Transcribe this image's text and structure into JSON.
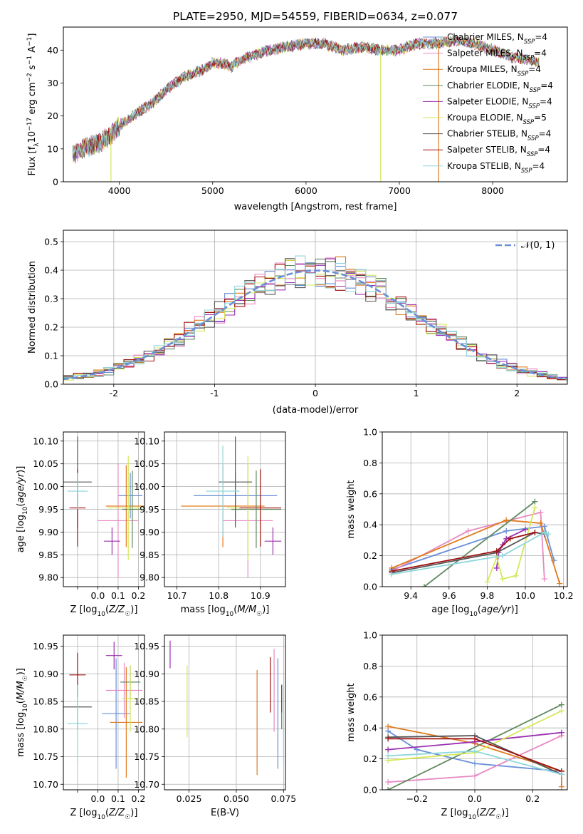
{
  "colors": {
    "chabrier_miles": "#6a8fd8",
    "salpeter_miles": "#e78ac3",
    "kroupa_miles": "#e07b1f",
    "chabrier_elodie": "#5f8a5f",
    "salpeter_elodie": "#9b30b0",
    "kroupa_elodie": "#d4e85a",
    "chabrier_stelib": "#555555",
    "salpeter_stelib": "#a01010",
    "kroupa_stelib": "#8fd6dc",
    "normal_curve": "#6a8fd8"
  },
  "chart_data": [
    {
      "id": "spectrum",
      "type": "line",
      "title": "PLATE=2950, MJD=54559, FIBERID=0634, z=0.077",
      "xlabel": "wavelength [Angstrom, rest frame]",
      "ylabel": "Flux [fλ10−17 erg cm−2 s−1 A−1]",
      "xlim": [
        3400,
        8800
      ],
      "ylim": [
        0,
        47
      ],
      "xticks": [
        4000,
        5000,
        6000,
        7000,
        8000
      ],
      "yticks": [
        0,
        10,
        20,
        30,
        40
      ],
      "grid": false,
      "legend_position": "upper-right",
      "legend": [
        {
          "text": "Chabrier MILES, N",
          "sub": "SSP",
          "tail": "=4",
          "color": "chabrier_miles"
        },
        {
          "text": "Salpeter MILES, N",
          "sub": "SSP",
          "tail": "=4",
          "color": "salpeter_miles"
        },
        {
          "text": "Kroupa MILES, N",
          "sub": "SSP",
          "tail": "=4",
          "color": "kroupa_miles"
        },
        {
          "text": "Chabrier ELODIE, N",
          "sub": "SSP",
          "tail": "=4",
          "color": "chabrier_elodie"
        },
        {
          "text": "Salpeter ELODIE, N",
          "sub": "SSP",
          "tail": "=4",
          "color": "salpeter_elodie"
        },
        {
          "text": "Kroupa ELODIE, N",
          "sub": "SSP",
          "tail": "=5",
          "color": "kroupa_elodie"
        },
        {
          "text": "Chabrier STELIB, N",
          "sub": "SSP",
          "tail": "=4",
          "color": "chabrier_stelib"
        },
        {
          "text": "Salpeter STELIB, N",
          "sub": "SSP",
          "tail": "=4",
          "color": "salpeter_stelib"
        },
        {
          "text": "Kroupa STELIB, N",
          "sub": "SSP",
          "tail": "=4",
          "color": "kroupa_stelib"
        }
      ],
      "continuum": [
        [
          3500,
          8
        ],
        [
          3600,
          10
        ],
        [
          3700,
          11
        ],
        [
          3800,
          12
        ],
        [
          3900,
          14
        ],
        [
          4000,
          17
        ],
        [
          4100,
          19
        ],
        [
          4200,
          21
        ],
        [
          4300,
          23
        ],
        [
          4400,
          25
        ],
        [
          4500,
          28
        ],
        [
          4600,
          30
        ],
        [
          4700,
          32
        ],
        [
          4800,
          33
        ],
        [
          4900,
          34
        ],
        [
          5000,
          36
        ],
        [
          5100,
          36
        ],
        [
          5200,
          35
        ],
        [
          5300,
          37
        ],
        [
          5400,
          38
        ],
        [
          5500,
          39
        ],
        [
          5600,
          40
        ],
        [
          5800,
          41
        ],
        [
          6000,
          42
        ],
        [
          6200,
          42
        ],
        [
          6400,
          40
        ],
        [
          6600,
          41
        ],
        [
          6800,
          40
        ],
        [
          7000,
          40
        ],
        [
          7200,
          42
        ],
        [
          7400,
          42
        ],
        [
          7600,
          43
        ],
        [
          7800,
          42
        ],
        [
          8000,
          40
        ],
        [
          8200,
          38
        ],
        [
          8400,
          37
        ],
        [
          8500,
          36
        ]
      ],
      "dropouts": [
        [
          3910,
          "kroupa_elodie"
        ],
        [
          6800,
          "kroupa_elodie"
        ],
        [
          7420,
          "kroupa_miles"
        ]
      ]
    },
    {
      "id": "residual-histogram",
      "type": "step",
      "xlabel": "(data-model)/error",
      "ylabel": "Normed distribution",
      "xlim": [
        -2.5,
        2.5
      ],
      "ylim": [
        0,
        0.54
      ],
      "xticks": [
        -2,
        -1,
        0,
        1,
        2
      ],
      "yticks": [
        0.0,
        0.1,
        0.2,
        0.3,
        0.4,
        0.5
      ],
      "grid": true,
      "legend_position": "upper-right",
      "legend_label": "𝒩(0, 1)",
      "bin_width": 0.1
    },
    {
      "id": "age-vs-Z",
      "type": "errorbar",
      "xlabel": "Z [log10(Z/Z☉)]",
      "ylabel": "age  [log10(age/yr)]",
      "xlim": [
        -0.17,
        0.23
      ],
      "ylim": [
        9.78,
        10.12
      ],
      "xticks": [
        -0.1,
        0.0,
        0.1,
        0.2
      ],
      "xticklabels": [
        "",
        "0.0",
        "0.1",
        "0.2"
      ],
      "yticks": [
        9.8,
        9.85,
        9.9,
        9.95,
        10.0,
        10.05,
        10.1
      ],
      "grid": true,
      "points": [
        {
          "color": "chabrier_miles",
          "x": 0.16,
          "xerr": 0.06,
          "y": 9.98,
          "yerr": 0.05
        },
        {
          "color": "salpeter_miles",
          "x": 0.1,
          "xerr": 0.1,
          "y": 9.925,
          "yerr": 0.125
        },
        {
          "color": "kroupa_miles",
          "x": 0.14,
          "xerr": 0.1,
          "y": 9.957,
          "yerr": 0.09
        },
        {
          "color": "chabrier_elodie",
          "x": 0.17,
          "xerr": 0.05,
          "y": 9.95,
          "yerr": 0.085
        },
        {
          "color": "salpeter_elodie",
          "x": 0.07,
          "xerr": 0.04,
          "y": 9.88,
          "yerr": 0.03
        },
        {
          "color": "kroupa_elodie",
          "x": 0.15,
          "xerr": 0.1,
          "y": 9.953,
          "yerr": 0.115
        },
        {
          "color": "chabrier_stelib",
          "x": -0.1,
          "xerr": 0.07,
          "y": 10.01,
          "yerr": 0.1
        },
        {
          "color": "salpeter_stelib",
          "x": -0.1,
          "xerr": 0.04,
          "y": 9.953,
          "yerr": 0.085
        },
        {
          "color": "kroupa_stelib",
          "x": -0.1,
          "xerr": 0.05,
          "y": 9.99,
          "yerr": 0.04
        }
      ]
    },
    {
      "id": "age-vs-mass",
      "type": "errorbar",
      "xlabel": "mass [log10(M/M☉)]",
      "ylabel": "",
      "xlim": [
        10.67,
        10.96
      ],
      "ylim": [
        9.78,
        10.12
      ],
      "xticks": [
        10.7,
        10.8,
        10.9
      ],
      "yticks": [
        9.8,
        9.85,
        9.9,
        9.95,
        10.0,
        10.05,
        10.1
      ],
      "grid": true,
      "points": [
        {
          "color": "chabrier_miles",
          "x": 10.84,
          "xerr": 0.1,
          "y": 9.98,
          "yerr": 0.05
        },
        {
          "color": "salpeter_miles",
          "x": 10.87,
          "xerr": 0.06,
          "y": 9.925,
          "yerr": 0.125
        },
        {
          "color": "kroupa_miles",
          "x": 10.81,
          "xerr": 0.1,
          "y": 9.957,
          "yerr": 0.09
        },
        {
          "color": "chabrier_elodie",
          "x": 10.89,
          "xerr": 0.06,
          "y": 9.95,
          "yerr": 0.085
        },
        {
          "color": "salpeter_elodie",
          "x": 10.93,
          "xerr": 0.02,
          "y": 9.88,
          "yerr": 0.03
        },
        {
          "color": "kroupa_elodie",
          "x": 10.87,
          "xerr": 0.05,
          "y": 9.953,
          "yerr": 0.115
        },
        {
          "color": "chabrier_stelib",
          "x": 10.84,
          "xerr": 0.04,
          "y": 10.01,
          "yerr": 0.1
        },
        {
          "color": "salpeter_stelib",
          "x": 10.9,
          "xerr": 0.05,
          "y": 9.953,
          "yerr": 0.085
        },
        {
          "color": "kroupa_stelib",
          "x": 10.81,
          "xerr": 0.04,
          "y": 9.99,
          "yerr": 0.1
        }
      ]
    },
    {
      "id": "mass-weight-vs-age",
      "type": "line",
      "xlabel": "age  [log10(age/yr)]",
      "ylabel": "mass weight",
      "xlim": [
        9.25,
        10.22
      ],
      "ylim": [
        0,
        1
      ],
      "xticks": [
        9.4,
        9.6,
        9.8,
        10.0,
        10.2
      ],
      "yticks": [
        0.0,
        0.2,
        0.4,
        0.6,
        0.8,
        1.0
      ],
      "grid": true,
      "series": [
        {
          "color": "chabrier_miles",
          "x": [
            9.3,
            9.9,
            10.1,
            10.15
          ],
          "y": [
            0.11,
            0.36,
            0.39,
            0.17
          ]
        },
        {
          "color": "salpeter_miles",
          "x": [
            9.3,
            9.7,
            10.08,
            10.1
          ],
          "y": [
            0.1,
            0.36,
            0.48,
            0.05
          ]
        },
        {
          "color": "kroupa_miles",
          "x": [
            9.3,
            9.9,
            10.08,
            10.18
          ],
          "y": [
            0.12,
            0.43,
            0.41,
            0.02
          ]
        },
        {
          "color": "chabrier_elodie",
          "x": [
            9.47,
            10.05
          ],
          "y": [
            0.0,
            0.55
          ]
        },
        {
          "color": "salpeter_elodie",
          "x": [
            9.85,
            9.86,
            9.88,
            9.9,
            10.0
          ],
          "y": [
            0.12,
            0.22,
            0.27,
            0.31,
            0.37
          ]
        },
        {
          "color": "kroupa_elodie",
          "x": [
            9.8,
            9.85,
            9.88,
            9.95,
            10.05
          ],
          "y": [
            0.03,
            0.19,
            0.05,
            0.07,
            0.51
          ]
        },
        {
          "color": "chabrier_stelib",
          "x": [
            9.3,
            9.85,
            10.05,
            10.1
          ],
          "y": [
            0.09,
            0.22,
            0.35,
            0.34
          ]
        },
        {
          "color": "salpeter_stelib",
          "x": [
            9.3,
            9.85,
            9.92,
            10.05
          ],
          "y": [
            0.1,
            0.23,
            0.31,
            0.35
          ]
        },
        {
          "color": "kroupa_stelib",
          "x": [
            9.3,
            9.88,
            10.1,
            10.12
          ],
          "y": [
            0.08,
            0.2,
            0.35,
            0.34
          ]
        }
      ]
    },
    {
      "id": "mass-vs-Z",
      "type": "errorbar",
      "xlabel": "Z [log10(Z/Z☉)]",
      "ylabel": "mass [log10(M/M☉)]",
      "xlim": [
        -0.17,
        0.23
      ],
      "ylim": [
        10.69,
        10.97
      ],
      "xticks": [
        -0.1,
        0.0,
        0.1,
        0.2
      ],
      "xticklabels": [
        "",
        "0.0",
        "0.1",
        "0.2"
      ],
      "yticks": [
        10.7,
        10.75,
        10.8,
        10.85,
        10.9,
        10.95
      ],
      "grid": true,
      "points": [
        {
          "color": "chabrier_miles",
          "x": 0.09,
          "xerr": 0.07,
          "y": 10.828,
          "yerr": 0.1
        },
        {
          "color": "salpeter_miles",
          "x": 0.13,
          "xerr": 0.09,
          "y": 10.87,
          "yerr": 0.05
        },
        {
          "color": "kroupa_miles",
          "x": 0.14,
          "xerr": 0.08,
          "y": 10.812,
          "yerr": 0.1
        },
        {
          "color": "chabrier_elodie",
          "x": 0.16,
          "xerr": 0.05,
          "y": 10.885,
          "yerr": 0.03
        },
        {
          "color": "salpeter_elodie",
          "x": 0.08,
          "xerr": 0.04,
          "y": 10.933,
          "yerr": 0.025
        },
        {
          "color": "kroupa_elodie",
          "x": 0.16,
          "xerr": 0.04,
          "y": 10.855,
          "yerr": 0.06
        },
        {
          "color": "chabrier_stelib",
          "x": -0.1,
          "xerr": 0.07,
          "y": 10.84,
          "yerr": 0.04
        },
        {
          "color": "salpeter_stelib",
          "x": -0.1,
          "xerr": 0.04,
          "y": 10.898,
          "yerr": 0.04
        },
        {
          "color": "kroupa_stelib",
          "x": -0.1,
          "xerr": 0.05,
          "y": 10.81,
          "yerr": 0.07
        }
      ]
    },
    {
      "id": "mass-vs-EBV",
      "type": "errorbar",
      "xlabel": "E(B-V)",
      "ylabel": "",
      "xlim": [
        0.012,
        0.076
      ],
      "ylim": [
        10.69,
        10.97
      ],
      "xticks": [
        0.025,
        0.05,
        0.075
      ],
      "xticklabels": [
        "0.025",
        "0.050",
        "0.075"
      ],
      "yticks": [
        10.7,
        10.75,
        10.8,
        10.85,
        10.9,
        10.95
      ],
      "grid": true,
      "points": [
        {
          "color": "chabrier_miles",
          "x": 0.072,
          "xerr": 0.0,
          "y": 10.828,
          "yerr": 0.1
        },
        {
          "color": "salpeter_miles",
          "x": 0.07,
          "xerr": 0.0,
          "y": 10.87,
          "yerr": 0.075
        },
        {
          "color": "kroupa_miles",
          "x": 0.061,
          "xerr": 0.0,
          "y": 10.812,
          "yerr": 0.095
        },
        {
          "color": "chabrier_elodie",
          "x": 0.074,
          "xerr": 0.0,
          "y": 10.84,
          "yerr": 0.04
        },
        {
          "color": "salpeter_elodie",
          "x": 0.015,
          "xerr": 0.0,
          "y": 10.935,
          "yerr": 0.025
        },
        {
          "color": "kroupa_elodie",
          "x": 0.024,
          "xerr": 0.0,
          "y": 10.85,
          "yerr": 0.065
        },
        {
          "color": "chabrier_stelib",
          "x": 0.074,
          "xerr": 0.0,
          "y": 10.855,
          "yerr": 0.025
        },
        {
          "color": "salpeter_stelib",
          "x": 0.068,
          "xerr": 0.0,
          "y": 10.88,
          "yerr": 0.05
        },
        {
          "color": "kroupa_stelib",
          "x": 0.075,
          "xerr": 0.0,
          "y": 10.81,
          "yerr": 0.07
        }
      ]
    },
    {
      "id": "mass-weight-vs-Z",
      "type": "line",
      "xlabel": "Z [log10(Z/Z☉)]",
      "ylabel": "mass weight",
      "xlim": [
        -0.32,
        0.32
      ],
      "ylim": [
        0,
        1
      ],
      "xticks": [
        -0.2,
        0.0,
        0.2
      ],
      "xticklabels": [
        "−0.2",
        "0.0",
        "0.2"
      ],
      "yticks": [
        0.0,
        0.2,
        0.4,
        0.6,
        0.8,
        1.0
      ],
      "grid": true,
      "series": [
        {
          "color": "chabrier_miles",
          "x": [
            -0.3,
            -0.2,
            0.0,
            0.3
          ],
          "y": [
            0.38,
            0.26,
            0.17,
            0.12
          ]
        },
        {
          "color": "salpeter_miles",
          "x": [
            -0.3,
            0.0,
            0.3
          ],
          "y": [
            0.05,
            0.09,
            0.35
          ]
        },
        {
          "color": "kroupa_miles",
          "x": [
            -0.3,
            0.0,
            0.3,
            0.3
          ],
          "y": [
            0.41,
            0.3,
            0.12,
            0.02
          ]
        },
        {
          "color": "chabrier_elodie",
          "x": [
            -0.3,
            0.3
          ],
          "y": [
            0.0,
            0.55
          ]
        },
        {
          "color": "salpeter_elodie",
          "x": [
            -0.3,
            0.0,
            0.3
          ],
          "y": [
            0.26,
            0.31,
            0.37
          ]
        },
        {
          "color": "kroupa_elodie",
          "x": [
            -0.3,
            0.0,
            0.3
          ],
          "y": [
            0.19,
            0.24,
            0.51
          ]
        },
        {
          "color": "chabrier_stelib",
          "x": [
            -0.3,
            0.0,
            0.3
          ],
          "y": [
            0.34,
            0.35,
            0.1
          ]
        },
        {
          "color": "salpeter_stelib",
          "x": [
            -0.3,
            0.0,
            0.3
          ],
          "y": [
            0.33,
            0.33,
            0.12
          ]
        },
        {
          "color": "kroupa_stelib",
          "x": [
            -0.3,
            0.0,
            0.3
          ],
          "y": [
            0.22,
            0.25,
            0.1
          ]
        }
      ]
    }
  ]
}
